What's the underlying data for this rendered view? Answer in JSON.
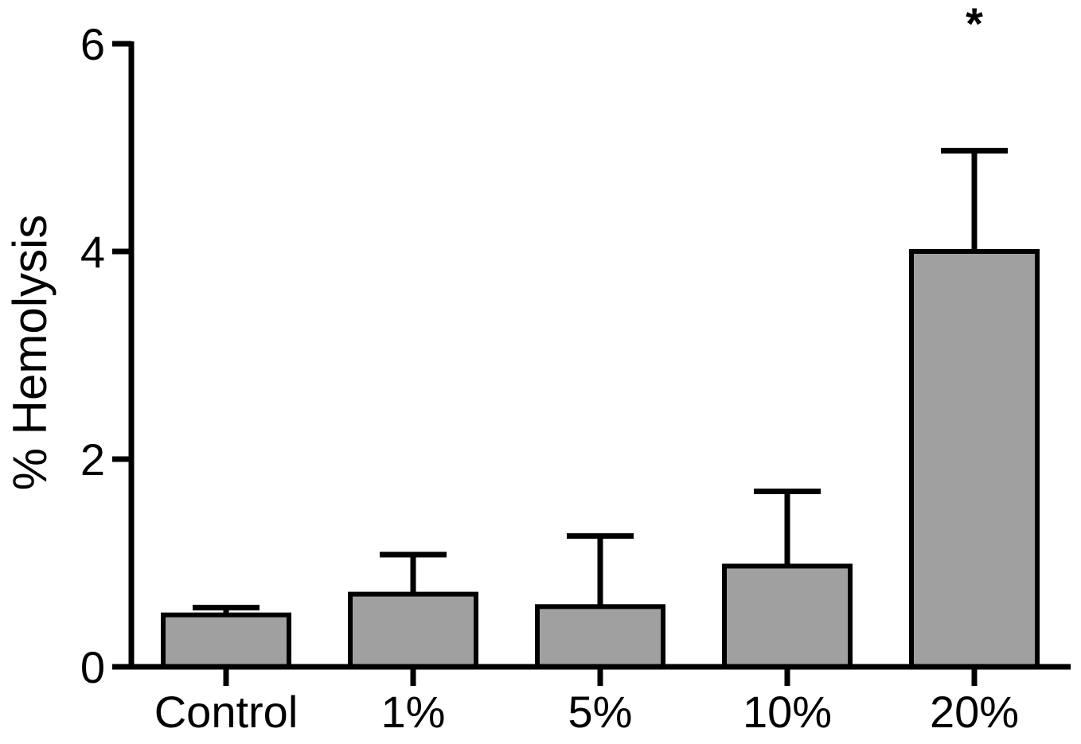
{
  "chart_data": {
    "type": "bar",
    "title": "",
    "categories": [
      "Control",
      "1%",
      "5%",
      "10%",
      "20%"
    ],
    "values": [
      0.5,
      0.7,
      0.58,
      0.97,
      4.0
    ],
    "errors_upper": [
      0.07,
      0.38,
      0.68,
      0.72,
      0.97
    ],
    "xlabel": "",
    "ylabel": "% Hemolysis",
    "ylim": [
      0,
      6
    ],
    "yticks": [
      0,
      2,
      4,
      6
    ],
    "grid": false,
    "legend": "none",
    "error_bars": "upper-only",
    "annotations": [
      {
        "text": "*",
        "category": "20%",
        "position": "above-20%-bar"
      }
    ],
    "colors": {
      "bar_fill": "#a0a0a0",
      "bar_stroke": "#000000",
      "axis": "#000000",
      "background": "#ffffff"
    }
  }
}
